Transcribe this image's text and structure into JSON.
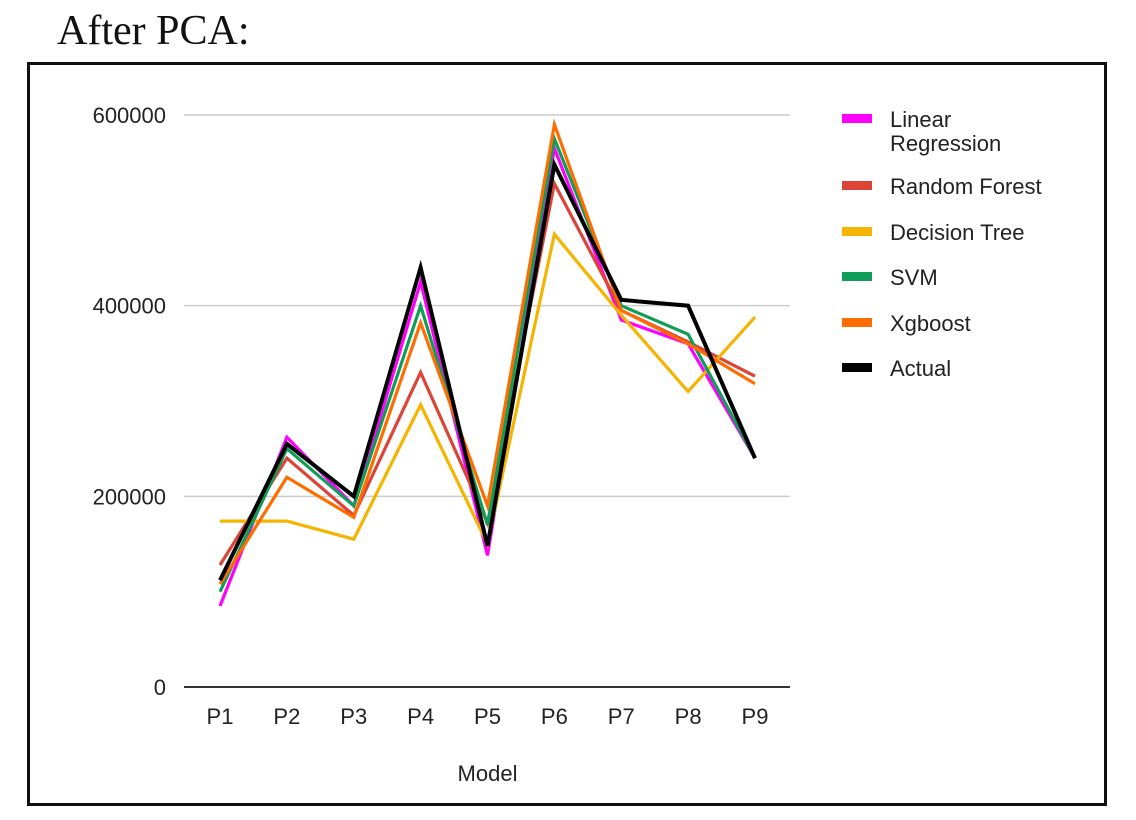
{
  "heading": "After PCA:",
  "chart_data": {
    "type": "line",
    "title": "",
    "xlabel": "Model",
    "ylabel": "",
    "categories": [
      "P1",
      "P2",
      "P3",
      "P4",
      "P5",
      "P6",
      "P7",
      "P8",
      "P9"
    ],
    "ylim": [
      0,
      600000
    ],
    "yticks": [
      {
        "value": 0,
        "label": "0"
      },
      {
        "value": 200000,
        "label": "200000"
      },
      {
        "value": 400000,
        "label": "400000"
      },
      {
        "value": 600000,
        "label": "600000"
      }
    ],
    "grid": true,
    "legend_position": "right",
    "series": [
      {
        "name": "Linear Regression",
        "color": "#ff00ff",
        "values": [
          85000,
          262000,
          190000,
          425000,
          138000,
          565000,
          385000,
          360000,
          240000
        ]
      },
      {
        "name": "Random Forest",
        "color": "#db4437",
        "values": [
          128000,
          240000,
          180000,
          330000,
          172000,
          528000,
          395000,
          362000,
          326000
        ]
      },
      {
        "name": "Decision Tree",
        "color": "#f4b400",
        "values": [
          174000,
          174000,
          155000,
          296000,
          150000,
          475000,
          390000,
          310000,
          388000
        ]
      },
      {
        "name": "SVM",
        "color": "#0f9d58",
        "values": [
          100000,
          250000,
          190000,
          400000,
          170000,
          575000,
          400000,
          370000,
          240000
        ]
      },
      {
        "name": "Xgboost",
        "color": "#ff6d01",
        "values": [
          108000,
          220000,
          178000,
          382000,
          190000,
          590000,
          395000,
          360000,
          318000
        ]
      },
      {
        "name": "Actual",
        "color": "#000000",
        "values": [
          112000,
          255000,
          200000,
          440000,
          148000,
          548000,
          406000,
          400000,
          240000
        ]
      }
    ]
  }
}
